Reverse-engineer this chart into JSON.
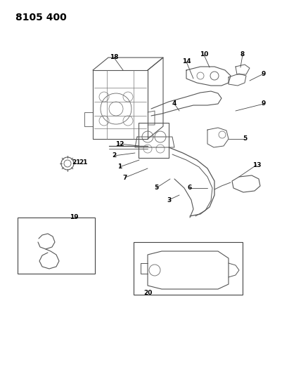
{
  "title": "8105 400",
  "background_color": "#ffffff",
  "fig_width": 4.11,
  "fig_height": 5.33,
  "dpi": 100,
  "line_color": "#555555",
  "text_color": "#000000",
  "label_fontsize": 6.5,
  "title_fontsize": 10
}
